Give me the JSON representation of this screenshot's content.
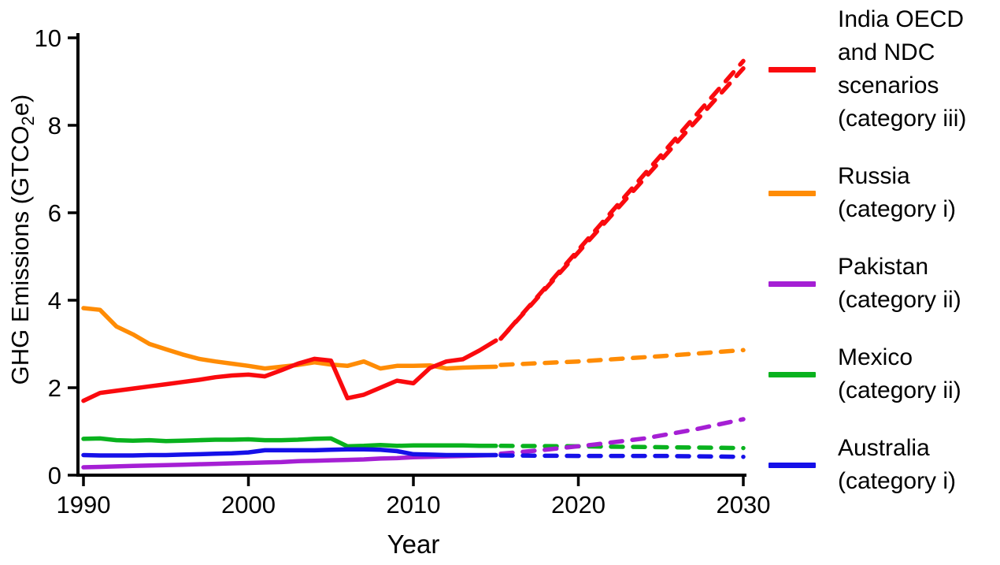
{
  "figure": {
    "xlabel": "Year",
    "ylabel_pre": "GHG Emissions (GTCO",
    "ylabel_sub": "2",
    "ylabel_post": "e)"
  },
  "chart_data": {
    "type": "line",
    "title": "",
    "xlabel": "Year",
    "ylabel": "GHG Emissions (GTCO2e)",
    "xlim": [
      1990,
      2030
    ],
    "ylim": [
      0,
      10
    ],
    "xticks": [
      "1990",
      "2000",
      "2010",
      "2020",
      "2030"
    ],
    "yticks": [
      "0",
      "2",
      "4",
      "6",
      "8",
      "10"
    ],
    "grid": false,
    "legend_position": "right",
    "projection_style": "dashed",
    "x_historical": [
      1990,
      1991,
      1992,
      1993,
      1994,
      1995,
      1996,
      1997,
      1998,
      1999,
      2000,
      2001,
      2002,
      2003,
      2004,
      2005,
      2006,
      2007,
      2008,
      2009,
      2010,
      2011,
      2012,
      2013,
      2014,
      2015
    ],
    "series": [
      {
        "id": "russia",
        "name": "Russia (category i)",
        "color": "#ff8c05",
        "y_historical": [
          3.82,
          3.78,
          3.4,
          3.22,
          3.0,
          2.88,
          2.76,
          2.66,
          2.6,
          2.55,
          2.5,
          2.44,
          2.48,
          2.52,
          2.58,
          2.53,
          2.5,
          2.6,
          2.44,
          2.5,
          2.5,
          2.51,
          2.44,
          2.46,
          2.47,
          2.48
        ],
        "projections": [
          {
            "x": [
              2015.3,
              2020,
              2025,
              2030
            ],
            "y": [
              2.52,
              2.6,
              2.72,
              2.86
            ]
          }
        ]
      },
      {
        "id": "india-oecd-ndc",
        "name": "India OECD and NDC scenarios (category iii)",
        "color": "#fa0a0e",
        "y_historical": [
          1.7,
          1.88,
          1.93,
          1.98,
          2.03,
          2.08,
          2.13,
          2.18,
          2.24,
          2.28,
          2.3,
          2.26,
          2.4,
          2.55,
          2.66,
          2.62,
          1.76,
          1.84,
          2.0,
          2.16,
          2.1,
          2.45,
          2.6,
          2.65,
          2.85,
          3.08
        ],
        "projections": [
          {
            "x": [
              2015.3,
              2030
            ],
            "y": [
              3.12,
              9.3
            ]
          },
          {
            "x": [
              2015.3,
              2030
            ],
            "y": [
              3.12,
              9.47
            ]
          }
        ]
      },
      {
        "id": "mexico",
        "name": "Mexico (category ii)",
        "color": "#09b21e",
        "y_historical": [
          0.83,
          0.84,
          0.8,
          0.79,
          0.8,
          0.78,
          0.79,
          0.8,
          0.81,
          0.81,
          0.82,
          0.8,
          0.8,
          0.81,
          0.83,
          0.84,
          0.66,
          0.67,
          0.69,
          0.67,
          0.68,
          0.68,
          0.68,
          0.68,
          0.67,
          0.67
        ],
        "projections": [
          {
            "x": [
              2015.3,
              2020,
              2025,
              2030
            ],
            "y": [
              0.67,
              0.66,
              0.64,
              0.62
            ]
          }
        ]
      },
      {
        "id": "pakistan",
        "name": "Pakistan (category ii)",
        "color": "#a51fd4",
        "y_historical": [
          0.18,
          0.19,
          0.2,
          0.21,
          0.22,
          0.23,
          0.24,
          0.25,
          0.26,
          0.27,
          0.28,
          0.29,
          0.3,
          0.32,
          0.33,
          0.34,
          0.35,
          0.36,
          0.38,
          0.39,
          0.41,
          0.42,
          0.43,
          0.44,
          0.45,
          0.46
        ],
        "projections": [
          {
            "x": [
              2015.3,
              2018,
              2021,
              2024,
              2027,
              2030
            ],
            "y": [
              0.49,
              0.58,
              0.7,
              0.84,
              1.04,
              1.28
            ]
          }
        ]
      },
      {
        "id": "australia",
        "name": "Australia (category i)",
        "color": "#1510e8",
        "y_historical": [
          0.46,
          0.45,
          0.45,
          0.45,
          0.46,
          0.46,
          0.47,
          0.48,
          0.49,
          0.5,
          0.52,
          0.57,
          0.57,
          0.57,
          0.57,
          0.58,
          0.59,
          0.59,
          0.58,
          0.55,
          0.48,
          0.47,
          0.46,
          0.46,
          0.46,
          0.46
        ],
        "projections": [
          {
            "x": [
              2015.3,
              2020,
              2025,
              2030
            ],
            "y": [
              0.45,
              0.44,
              0.44,
              0.42
            ]
          }
        ]
      }
    ]
  },
  "legend": {
    "items": [
      {
        "label": "India OECD and NDC scenarios (category iii)",
        "color": "#fa0a0e"
      },
      {
        "label": "Russia (category i)",
        "color": "#ff8c05"
      },
      {
        "label": "Pakistan (category ii)",
        "color": "#a51fd4"
      },
      {
        "label": "Mexico (category ii)",
        "color": "#09b21e"
      },
      {
        "label": "Australia (category i)",
        "color": "#1510e8"
      }
    ]
  }
}
